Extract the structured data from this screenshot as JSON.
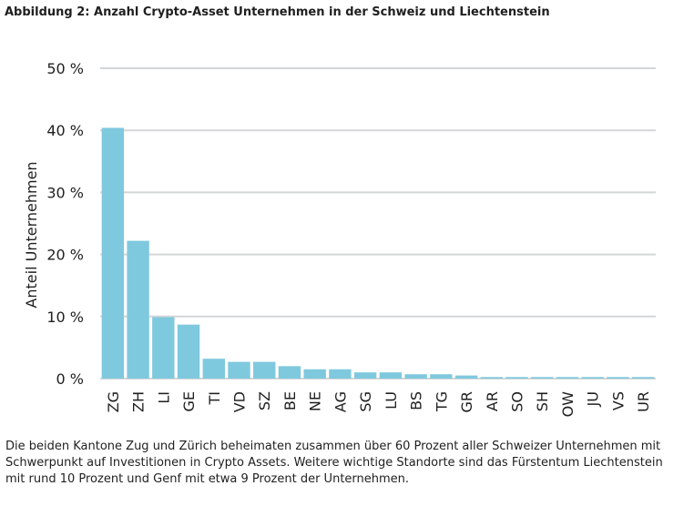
{
  "figure_title": "Abbildung 2: Anzahl Crypto-Asset Unternehmen in der Schweiz und Liechtenstein",
  "caption": "Die beiden Kantone Zug und Zürich beheimaten zusammen über 60 Prozent aller Schweizer Unternehmen mit Schwerpunkt auf Investitionen in Crypto Assets. Weitere wichtige Standorte sind das Fürstentum Liechtenstein mit rund 10 Prozent und Genf mit etwa 9 Prozent der Unternehmen.",
  "chart_data": {
    "type": "bar",
    "title": "",
    "xlabel": "",
    "ylabel": "Anteil Unternehmen",
    "ylim": [
      0,
      50
    ],
    "yticks": [
      0,
      10,
      20,
      30,
      40,
      50
    ],
    "ytick_labels": [
      "0 %",
      "10 %",
      "20 %",
      "30 %",
      "40 %",
      "50 %"
    ],
    "grid": "horizontal",
    "categories": [
      "ZG",
      "ZH",
      "LI",
      "GE",
      "TI",
      "VD",
      "SZ",
      "BE",
      "NE",
      "AG",
      "SG",
      "LU",
      "BS",
      "TG",
      "GR",
      "AR",
      "SO",
      "SH",
      "OW",
      "JU",
      "VS",
      "UR"
    ],
    "values": [
      40.4,
      22.2,
      9.9,
      8.7,
      3.2,
      2.7,
      2.7,
      2.0,
      1.5,
      1.5,
      1.0,
      1.0,
      0.7,
      0.7,
      0.5,
      0.25,
      0.25,
      0.25,
      0.25,
      0.25,
      0.25,
      0.25
    ],
    "bar_color": "#7fc9de",
    "grid_color": "#d4d6d8",
    "text_color": "#1f1f1f"
  }
}
